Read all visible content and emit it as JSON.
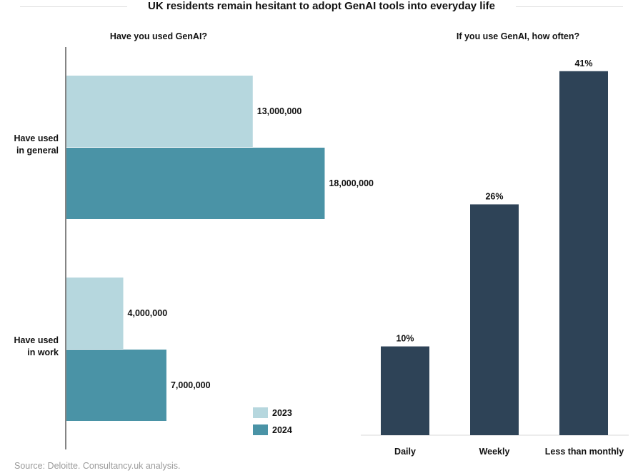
{
  "title": "UK residents remain hesitant to adopt GenAI tools into everyday life",
  "source": "Source: Deloitte. Consultancy.uk analysis.",
  "colors": {
    "series_2023": "#b6d7de",
    "series_2024": "#4a93a6",
    "frequency_bar": "#2e4357",
    "axis": "#333333"
  },
  "chart_data": [
    {
      "type": "bar",
      "orientation": "horizontal",
      "title": "Have you used GenAI?",
      "categories": [
        [
          "Have used",
          "in general"
        ],
        [
          "Have used",
          "in work"
        ]
      ],
      "series": [
        {
          "name": "2023",
          "values": [
            13000000,
            4000000
          ],
          "labels": [
            "13,000,000",
            "4,000,000"
          ]
        },
        {
          "name": "2024",
          "values": [
            18000000,
            7000000
          ],
          "labels": [
            "18,000,000",
            "7,000,000"
          ]
        }
      ],
      "xlim": [
        0,
        22000000
      ],
      "legend": "bottom-right",
      "grid": false
    },
    {
      "type": "bar",
      "orientation": "vertical",
      "title": "If you use GenAI, how often?",
      "categories": [
        "Daily",
        "Weekly",
        "Less than monthly"
      ],
      "values": [
        10,
        26,
        41
      ],
      "labels": [
        "10%",
        "26%",
        "41%"
      ],
      "ylim": [
        0,
        45
      ],
      "grid": false
    }
  ]
}
